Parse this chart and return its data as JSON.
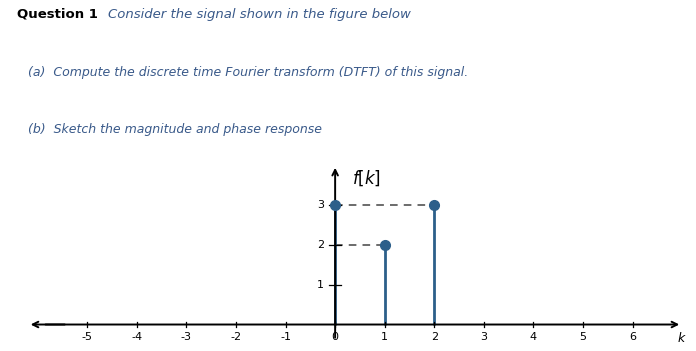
{
  "question_label": "Question 1",
  "question_text": "Consider the signal shown in the figure below",
  "part_a": "(a)  Compute the discrete time Fourier transform (DTFT) of this signal.",
  "part_b": "(b)  Sketch the magnitude and phase response",
  "stem_k": [
    0,
    1,
    2
  ],
  "stem_values": [
    3,
    2,
    3
  ],
  "x_min": -6.2,
  "x_max": 7.0,
  "y_min": -0.4,
  "y_max": 4.0,
  "x_ticks": [
    -5,
    -4,
    -3,
    -2,
    -1,
    0,
    1,
    2,
    3,
    4,
    5,
    6
  ],
  "x_tick_labels": [
    "-5",
    "-4",
    "-3",
    "-2",
    "-1",
    "0",
    "1",
    "2",
    "3",
    "4",
    "5",
    "6"
  ],
  "k_label": "k",
  "y_ticks": [
    1,
    2,
    3
  ],
  "stem_color": "#2c5f8a",
  "dot_color": "#2c5f8a",
  "dashed_color": "#444444",
  "background_color": "#ffffff",
  "fig_width": 6.96,
  "fig_height": 3.51,
  "text_color_blue": "#3a5a8a",
  "text_color_black": "#000000"
}
